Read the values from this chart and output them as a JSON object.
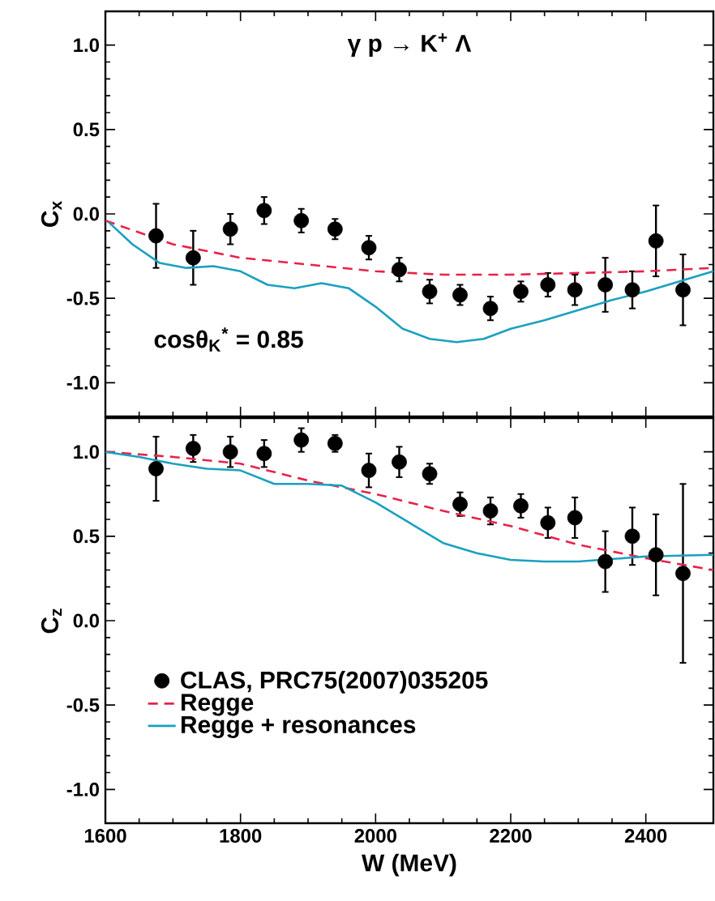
{
  "chart_data": [
    {
      "type": "scatter",
      "title": "γ p → K$^{+}$ Λ",
      "ylabel": "C$_{x}$",
      "annotations": [
        {
          "text": "cosθ$_{K}$$^{*}$ = 0.85"
        }
      ],
      "xlim": [
        1600,
        2500
      ],
      "xticks": [
        1600,
        1800,
        2000,
        2200,
        2400
      ],
      "ylim": [
        -1.2,
        1.2
      ],
      "yticks": [
        {
          "value": -1,
          "label": "-1.0"
        },
        {
          "value": -0.5,
          "label": "-0.5"
        },
        {
          "value": 0,
          "label": "0.0"
        },
        {
          "value": 0.5,
          "label": "0.5"
        },
        {
          "value": 1,
          "label": "1.0"
        }
      ],
      "tick_labels": "y",
      "grid": false,
      "legend": false,
      "series": [
        {
          "marker": "circle",
          "color": "#000000",
          "x": [
            1675,
            1730,
            1785,
            1835,
            1890,
            1940,
            1990,
            2035,
            2080,
            2125,
            2170,
            2215,
            2255,
            2295,
            2340,
            2380,
            2415,
            2455
          ],
          "values": [
            -0.13,
            -0.26,
            -0.09,
            0.02,
            -0.04,
            -0.09,
            -0.2,
            -0.33,
            -0.46,
            -0.48,
            -0.56,
            -0.46,
            -0.42,
            -0.45,
            -0.42,
            -0.45,
            -0.16,
            -0.45
          ],
          "errors": [
            0.19,
            0.16,
            0.09,
            0.08,
            0.07,
            0.06,
            0.07,
            0.07,
            0.07,
            0.06,
            0.07,
            0.06,
            0.07,
            0.09,
            0.16,
            0.11,
            0.21,
            0.21
          ]
        },
        {
          "type": "line",
          "line_style": "dashed",
          "color": "#e8224a",
          "x": [
            1600,
            1700,
            1800,
            1900,
            2000,
            2100,
            2200,
            2300,
            2400,
            2500
          ],
          "values": [
            -0.04,
            -0.18,
            -0.26,
            -0.3,
            -0.34,
            -0.36,
            -0.36,
            -0.35,
            -0.34,
            -0.32
          ]
        },
        {
          "type": "line",
          "line_style": "solid",
          "color": "#1aa0c0",
          "x": [
            1605,
            1640,
            1680,
            1720,
            1760,
            1800,
            1840,
            1880,
            1920,
            1960,
            2000,
            2040,
            2080,
            2120,
            2160,
            2200,
            2250,
            2300,
            2350,
            2400,
            2450,
            2500
          ],
          "values": [
            -0.05,
            -0.18,
            -0.29,
            -0.32,
            -0.31,
            -0.34,
            -0.42,
            -0.44,
            -0.41,
            -0.44,
            -0.55,
            -0.68,
            -0.74,
            -0.76,
            -0.74,
            -0.68,
            -0.63,
            -0.57,
            -0.51,
            -0.46,
            -0.4,
            -0.34
          ]
        }
      ]
    },
    {
      "type": "scatter",
      "ylabel": "C$_{z}$",
      "xlabel": "W (MeV)",
      "xlim": [
        1600,
        2500
      ],
      "xticks": [
        1600,
        1800,
        2000,
        2200,
        2400
      ],
      "ylim": [
        -1.2,
        1.2
      ],
      "yticks": [
        {
          "value": -1,
          "label": "-1.0"
        },
        {
          "value": -0.5,
          "label": "-0.5"
        },
        {
          "value": 0,
          "label": "0.0"
        },
        {
          "value": 0.5,
          "label": "0.5"
        },
        {
          "value": 1,
          "label": "1.0"
        }
      ],
      "grid": false,
      "legend": "bottom left",
      "series": [
        {
          "name": "CLAS, PRC75(2007)035205",
          "marker": "circle",
          "color": "#000000",
          "x": [
            1675,
            1730,
            1785,
            1835,
            1890,
            1940,
            1990,
            2035,
            2080,
            2125,
            2170,
            2215,
            2255,
            2295,
            2340,
            2380,
            2415,
            2455
          ],
          "values": [
            0.9,
            1.02,
            1.0,
            0.99,
            1.07,
            1.05,
            0.89,
            0.94,
            0.87,
            0.69,
            0.65,
            0.68,
            0.58,
            0.61,
            0.35,
            0.5,
            0.39,
            0.28
          ],
          "errors": [
            0.19,
            0.08,
            0.09,
            0.08,
            0.07,
            0.05,
            0.1,
            0.09,
            0.06,
            0.07,
            0.08,
            0.07,
            0.09,
            0.12,
            0.18,
            0.17,
            0.24,
            0.53
          ]
        },
        {
          "type": "line",
          "name": "Regge",
          "line_style": "dashed",
          "color": "#e8224a",
          "x": [
            1600,
            1700,
            1800,
            1900,
            2000,
            2100,
            2200,
            2300,
            2400,
            2500
          ],
          "values": [
            1.0,
            0.97,
            0.93,
            0.83,
            0.75,
            0.65,
            0.56,
            0.45,
            0.37,
            0.3
          ]
        },
        {
          "type": "line",
          "name": "Regge + resonances",
          "line_style": "solid",
          "color": "#1aa0c0",
          "x": [
            1600,
            1650,
            1700,
            1750,
            1800,
            1850,
            1900,
            1950,
            2000,
            2050,
            2100,
            2150,
            2200,
            2250,
            2300,
            2400,
            2500
          ],
          "values": [
            1.0,
            0.97,
            0.93,
            0.9,
            0.89,
            0.81,
            0.81,
            0.8,
            0.7,
            0.58,
            0.46,
            0.4,
            0.36,
            0.35,
            0.35,
            0.38,
            0.39
          ]
        }
      ]
    }
  ]
}
